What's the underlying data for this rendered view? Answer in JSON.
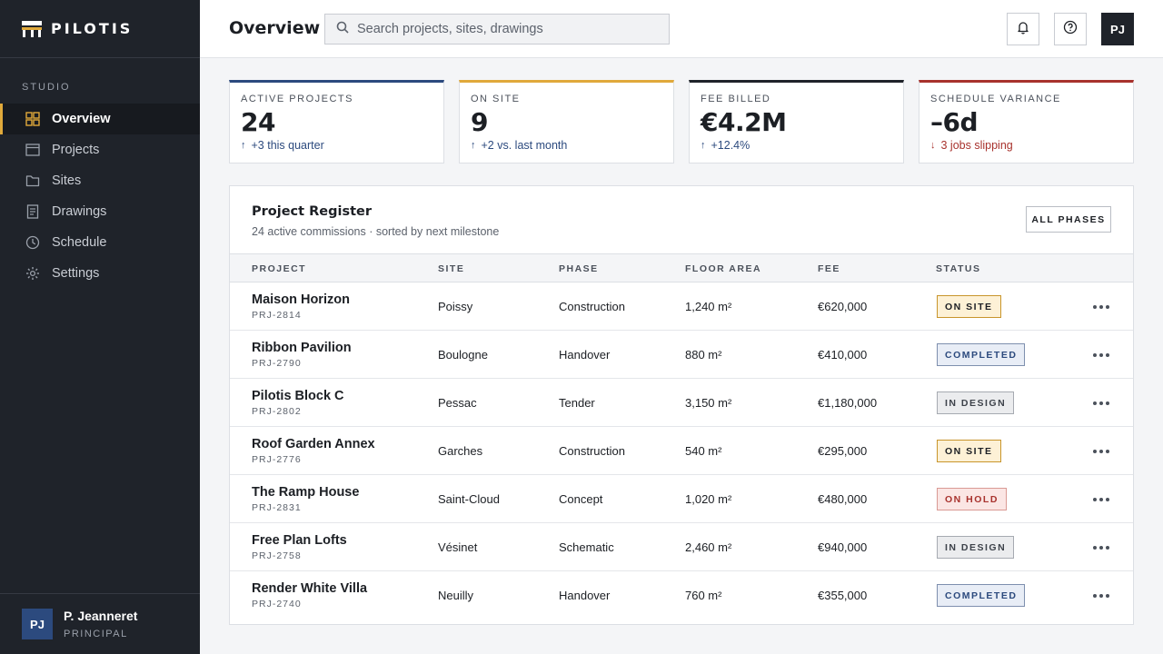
{
  "brand": {
    "name": "PILOTIS"
  },
  "sidebar": {
    "section_label": "STUDIO",
    "items": [
      {
        "label": "Overview",
        "icon": "grid-icon",
        "active": true
      },
      {
        "label": "Projects",
        "icon": "window-icon",
        "active": false
      },
      {
        "label": "Sites",
        "icon": "folder-icon",
        "active": false
      },
      {
        "label": "Drawings",
        "icon": "document-icon",
        "active": false
      },
      {
        "label": "Schedule",
        "icon": "clock-icon",
        "active": false
      },
      {
        "label": "Settings",
        "icon": "gear-icon",
        "active": false
      }
    ],
    "user": {
      "initials": "PJ",
      "name": "P. Jeanneret",
      "role": "PRINCIPAL"
    }
  },
  "header": {
    "title": "Overview",
    "search_placeholder": "Search projects, sites, drawings",
    "avatar_initials": "PJ",
    "icons": [
      "bell-icon",
      "help-icon"
    ]
  },
  "kpis": [
    {
      "label": "ACTIVE PROJECTS",
      "value": "24",
      "delta": "+3 this quarter",
      "direction": "up",
      "accent": "#2c4a7e",
      "delta_color": "#2c4a7e"
    },
    {
      "label": "ON SITE",
      "value": "9",
      "delta": "+2 vs. last month",
      "direction": "up",
      "accent": "#e0a93b",
      "delta_color": "#2c4a7e"
    },
    {
      "label": "FEE BILLED",
      "value": "€4.2M",
      "delta": "+12.4%",
      "direction": "up",
      "accent": "#1f232a",
      "delta_color": "#2c4a7e"
    },
    {
      "label": "SCHEDULE VARIANCE",
      "value": "–6d",
      "delta": "3 jobs slipping",
      "direction": "down",
      "accent": "#a8322d",
      "delta_color": "#a8322d"
    }
  ],
  "register": {
    "title": "Project Register",
    "subtitle": "24 active commissions · sorted by next milestone",
    "filter_label": "ALL PHASES",
    "columns": [
      "PROJECT",
      "SITE",
      "PHASE",
      "FLOOR AREA",
      "FEE",
      "STATUS"
    ],
    "rows": [
      {
        "name": "Maison Horizon",
        "id": "PRJ-2814",
        "site": "Poissy",
        "phase": "Construction",
        "area": "1,240 m²",
        "fee": "€620,000",
        "status": "ON SITE"
      },
      {
        "name": "Ribbon Pavilion",
        "id": "PRJ-2790",
        "site": "Boulogne",
        "phase": "Handover",
        "area": "880 m²",
        "fee": "€410,000",
        "status": "COMPLETED"
      },
      {
        "name": "Pilotis Block C",
        "id": "PRJ-2802",
        "site": "Pessac",
        "phase": "Tender",
        "area": "3,150 m²",
        "fee": "€1,180,000",
        "status": "IN DESIGN"
      },
      {
        "name": "Roof Garden Annex",
        "id": "PRJ-2776",
        "site": "Garches",
        "phase": "Construction",
        "area": "540 m²",
        "fee": "€295,000",
        "status": "ON SITE"
      },
      {
        "name": "The Ramp House",
        "id": "PRJ-2831",
        "site": "Saint-Cloud",
        "phase": "Concept",
        "area": "1,020 m²",
        "fee": "€480,000",
        "status": "ON HOLD"
      },
      {
        "name": "Free Plan Lofts",
        "id": "PRJ-2758",
        "site": "Vésinet",
        "phase": "Schematic",
        "area": "2,460 m²",
        "fee": "€940,000",
        "status": "IN DESIGN"
      },
      {
        "name": "Render White Villa",
        "id": "PRJ-2740",
        "site": "Neuilly",
        "phase": "Handover",
        "area": "760 m²",
        "fee": "€355,000",
        "status": "COMPLETED"
      }
    ]
  },
  "status_colors": {
    "ON SITE": {
      "bg": "#fdf1d6",
      "border": "#c8952c",
      "text": "#1c1f24"
    },
    "COMPLETED": {
      "bg": "#e8edf6",
      "border": "#7e8fae",
      "text": "#2c4a7e"
    },
    "IN DESIGN": {
      "bg": "#ebecee",
      "border": "#a6aab1",
      "text": "#3d424a"
    },
    "ON HOLD": {
      "bg": "#fbe6e4",
      "border": "#d99a94",
      "text": "#a8322d"
    }
  }
}
